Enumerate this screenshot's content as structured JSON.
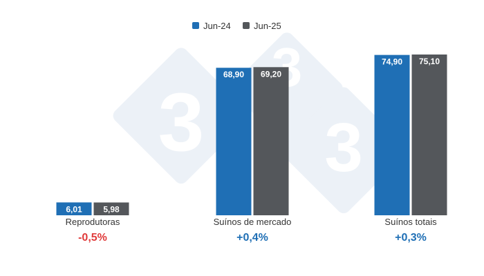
{
  "chart_data": {
    "type": "bar",
    "categories": [
      "Reprodutoras",
      "Suínos de mercado",
      "Suínos totais"
    ],
    "series": [
      {
        "name": "Jun-24",
        "color": "#1f6fb5",
        "values": [
          6.01,
          68.9,
          74.9
        ],
        "labels": [
          "6,01",
          "68,90",
          "74,90"
        ]
      },
      {
        "name": "Jun-25",
        "color": "#54575b",
        "values": [
          5.98,
          69.2,
          75.1
        ],
        "labels": [
          "5,98",
          "69,20",
          "75,10"
        ]
      }
    ],
    "changes": [
      {
        "text": "-0,5%",
        "color": "#e03a3a"
      },
      {
        "text": "+0,4%",
        "color": "#1f6fb5"
      },
      {
        "text": "+0,3%",
        "color": "#1f6fb5"
      }
    ],
    "legend_position": "top-center",
    "grid": false,
    "ylim": [
      0,
      75.1
    ]
  }
}
